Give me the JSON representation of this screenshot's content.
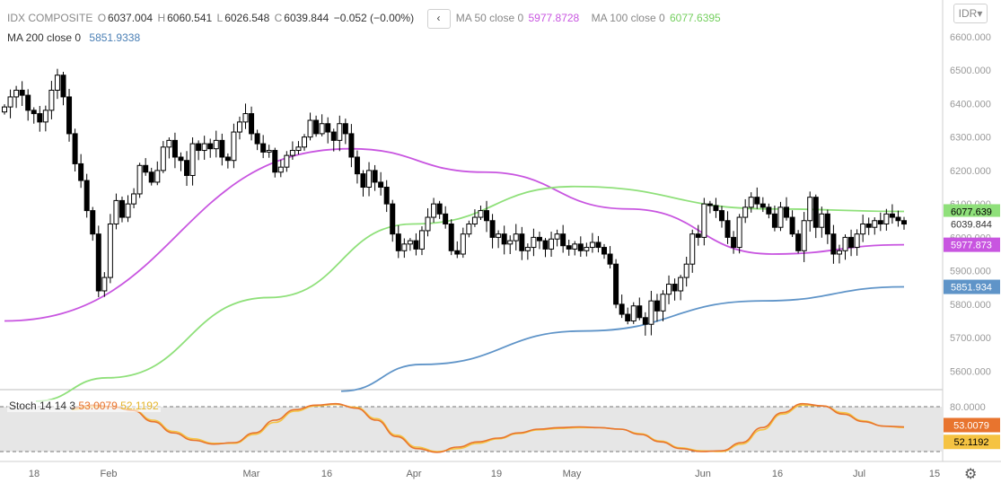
{
  "header": {
    "symbol": "IDX COMPOSITE",
    "ohlc": [
      {
        "label": "O",
        "value": "6037.004"
      },
      {
        "label": "H",
        "value": "6060.541"
      },
      {
        "label": "L",
        "value": "6026.548"
      },
      {
        "label": "C",
        "value": "6039.844"
      }
    ],
    "change": "−0.052 (−0.00%)",
    "collapse_icon": "chevron-left-icon",
    "ma50_label": "MA 50 close 0",
    "ma50_value": "5977.8728",
    "ma100_label": "MA 100 close 0",
    "ma100_value": "6077.6395",
    "ma200_label": "MA 200 close 0",
    "ma200_value": "5851.9338",
    "currency": "IDR",
    "currency_icon": "chevron-down-icon"
  },
  "stoch_legend": {
    "label": "Stoch 14 14 3",
    "k_value": "53.0079",
    "d_value": "52.1192"
  },
  "colors": {
    "up": "#ffffff",
    "down": "#000000",
    "ma50": "#c855e0",
    "ma100": "#8fe07a",
    "ma200": "#5f94c8",
    "stoch_k": "#e8742e",
    "stoch_d": "#f5c342"
  },
  "chart_data": [
    {
      "type": "candlestick",
      "title": "IDX COMPOSITE",
      "x_ticks": [
        "18",
        "Feb",
        "Mar",
        "16",
        "Apr",
        "19",
        "May",
        "Jun",
        "16",
        "Jul",
        "15"
      ],
      "y_ticks": [
        "6600.000",
        "6500.000",
        "6400.000",
        "6300.000",
        "6200.000",
        "6100.000",
        "6000.000",
        "5900.000",
        "5800.000",
        "5700.000",
        "5600.000"
      ],
      "ylim": [
        5550,
        6640
      ],
      "price_labels": [
        {
          "value": 6077.639,
          "text": "6077.639",
          "color": "#8fe07a"
        },
        {
          "value": 6039.844,
          "text": "6039.844",
          "color": "#ffffff"
        },
        {
          "value": 5977.873,
          "text": "5977.873",
          "color": "#c855e0"
        },
        {
          "value": 5851.934,
          "text": "5851.934",
          "color": "#5f94c8"
        }
      ],
      "closes": [
        6390,
        6420,
        6440,
        6425,
        6380,
        6370,
        6345,
        6380,
        6440,
        6485,
        6420,
        6310,
        6220,
        6170,
        6080,
        6010,
        5840,
        5880,
        6040,
        6110,
        6060,
        6100,
        6130,
        6215,
        6195,
        6165,
        6200,
        6270,
        6290,
        6240,
        6230,
        6185,
        6280,
        6260,
        6280,
        6265,
        6290,
        6240,
        6230,
        6315,
        6345,
        6370,
        6310,
        6280,
        6255,
        6260,
        6195,
        6210,
        6245,
        6260,
        6270,
        6300,
        6350,
        6310,
        6340,
        6315,
        6290,
        6340,
        6310,
        6240,
        6190,
        6150,
        6200,
        6165,
        6150,
        6100,
        6010,
        5960,
        5980,
        5990,
        5965,
        6020,
        6060,
        6100,
        6070,
        6040,
        5960,
        5950,
        6010,
        6040,
        6060,
        6080,
        6050,
        6000,
        6010,
        5980,
        5990,
        6010,
        5960,
        5970,
        6000,
        5990,
        5965,
        5995,
        6010,
        5975,
        5965,
        5980,
        5960,
        5970,
        5985,
        5970,
        5950,
        5920,
        5800,
        5770,
        5750,
        5795,
        5760,
        5740,
        5810,
        5780,
        5830,
        5860,
        5840,
        5880,
        5920,
        6010,
        6000,
        6100,
        6095,
        6080,
        6050,
        6000,
        5970,
        6060,
        6090,
        6120,
        6100,
        6090,
        6070,
        6030,
        6090,
        6060,
        6010,
        5960,
        6050,
        6120,
        6030,
        6070,
        6010,
        5950,
        5960,
        6000,
        5970,
        6010,
        6040,
        6030,
        6050,
        6040,
        6070,
        6060,
        6050,
        6039.844
      ],
      "series": [
        {
          "name": "MA 50 close 0",
          "values": [
            5750,
            6265,
            6195,
            6085,
            5950,
            5977.873
          ]
        },
        {
          "name": "MA 100 close 0",
          "values": [
            5510,
            5580,
            5820,
            6040,
            6152,
            6085,
            6077.639
          ]
        },
        {
          "name": "MA 200 close 0",
          "values": [
            5540,
            5620,
            5720,
            5810,
            5851.934
          ]
        }
      ]
    },
    {
      "type": "line",
      "title": "Stoch 14 14 3",
      "y_ticks": [
        "80.0000"
      ],
      "ylim": [
        0,
        100
      ],
      "bands": [
        80,
        20
      ],
      "series": [
        {
          "name": "%K",
          "values": [
            78,
            82,
            80,
            75,
            60,
            45,
            35,
            30,
            32,
            45,
            62,
            76,
            82,
            84,
            78,
            62,
            40,
            24,
            19,
            26,
            33,
            38,
            45,
            50,
            52,
            53,
            52,
            50,
            43,
            33,
            24,
            20,
            21,
            32,
            52,
            72,
            84,
            81,
            70,
            60,
            54,
            53.0079
          ]
        },
        {
          "name": "%D",
          "values": [
            76,
            80,
            80,
            76,
            62,
            47,
            37,
            31,
            31,
            43,
            59,
            74,
            81,
            83,
            79,
            64,
            42,
            26,
            20,
            24,
            31,
            37,
            44,
            49,
            51,
            52,
            52,
            50,
            44,
            34,
            25,
            21,
            20,
            30,
            49,
            70,
            82,
            81,
            72,
            61,
            54,
            52.1192
          ]
        }
      ]
    }
  ]
}
